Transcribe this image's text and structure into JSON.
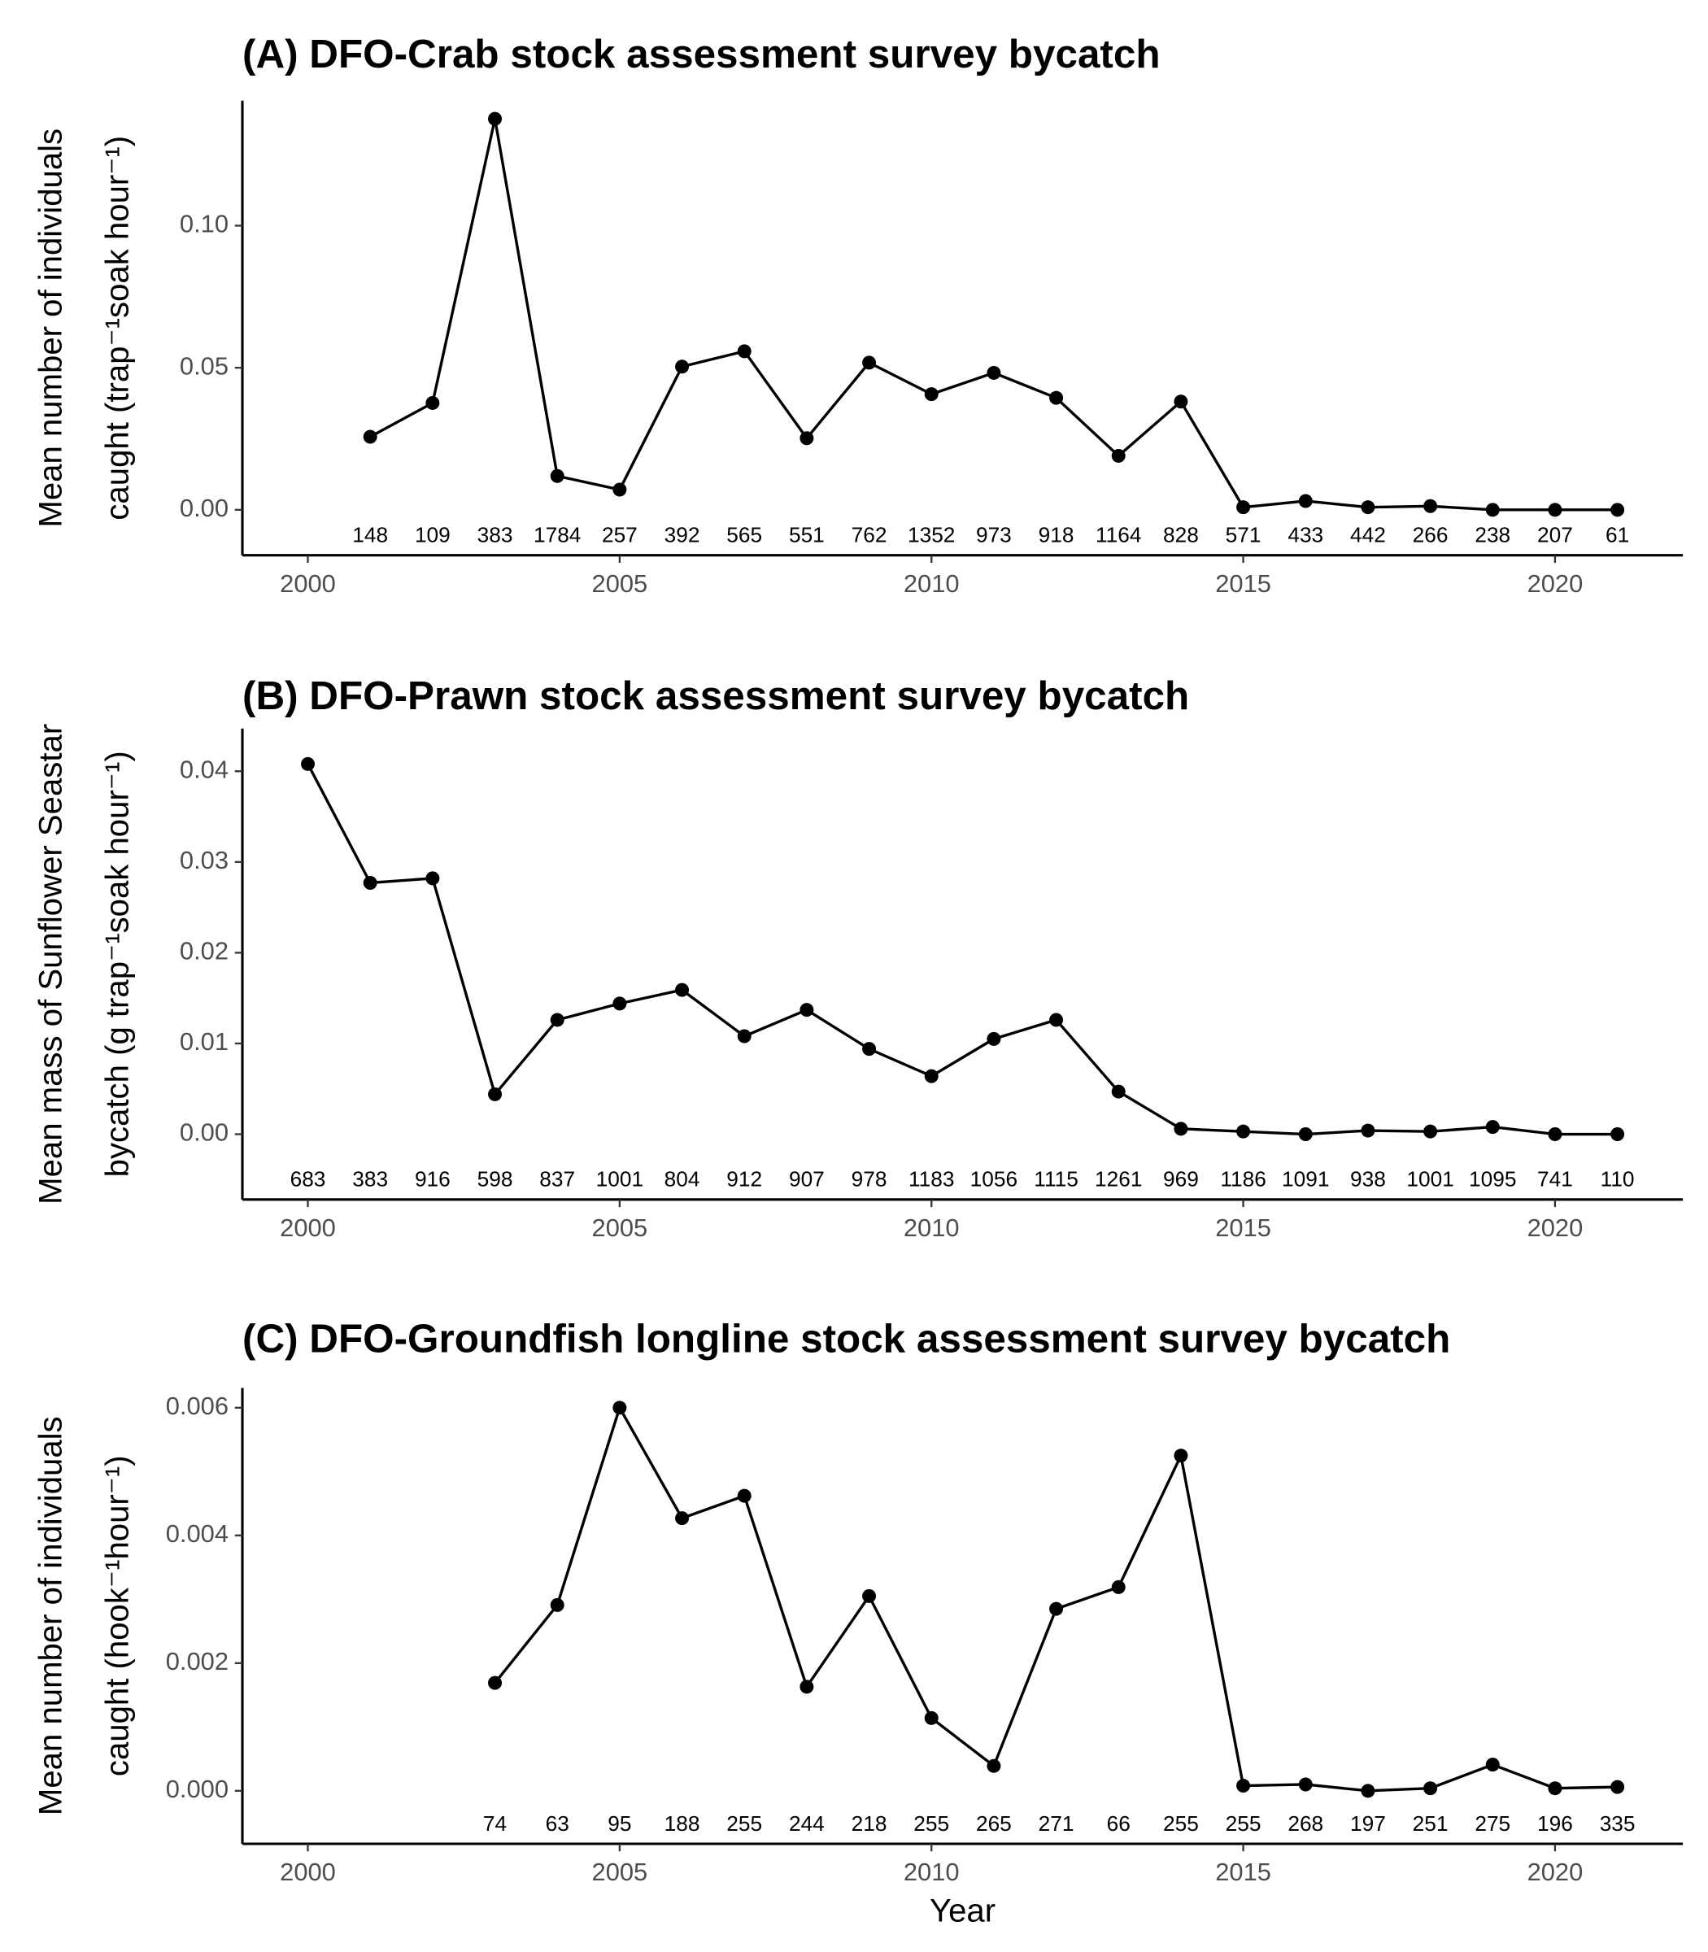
{
  "chart_data": [
    {
      "type": "line",
      "title": "(A) DFO-Crab stock assessment survey bycatch",
      "ylabel_lines": [
        "Mean number of individuals",
        "caught (trap⁻¹soak hour⁻¹)"
      ],
      "x": [
        2001,
        2002,
        2003,
        2004,
        2005,
        2006,
        2007,
        2008,
        2009,
        2010,
        2011,
        2012,
        2013,
        2014,
        2015,
        2016,
        2017,
        2018,
        2019,
        2020,
        2021
      ],
      "values": [
        0.0257,
        0.0376,
        0.1376,
        0.0119,
        0.0071,
        0.0504,
        0.0558,
        0.0252,
        0.0518,
        0.0407,
        0.0482,
        0.0394,
        0.019,
        0.0381,
        0.0009,
        0.0031,
        0.0009,
        0.0013,
        0,
        0,
        0
      ],
      "n_labels": [
        148,
        109,
        383,
        1784,
        257,
        392,
        565,
        551,
        762,
        1352,
        973,
        918,
        1164,
        828,
        571,
        433,
        442,
        266,
        238,
        207,
        61
      ],
      "color": "#000000",
      "xlim": [
        1998.95,
        2022.05
      ],
      "ylim": [
        -0.016,
        0.144
      ],
      "xticks": [
        2000,
        2005,
        2010,
        2015,
        2020
      ],
      "yticks": [
        {
          "value": 0,
          "label": "0.00"
        },
        0.05,
        {
          "value": 0.1,
          "label": "0.10"
        }
      ]
    },
    {
      "type": "line",
      "title": "(B) DFO-Prawn stock assessment survey bycatch",
      "ylabel_lines": [
        "Mean mass of Sunflower Seastar",
        "bycatch (g trap⁻¹soak hour⁻¹)"
      ],
      "x": [
        2000,
        2001,
        2002,
        2003,
        2004,
        2005,
        2006,
        2007,
        2008,
        2009,
        2010,
        2011,
        2012,
        2013,
        2014,
        2015,
        2016,
        2017,
        2018,
        2019,
        2020,
        2021
      ],
      "values": [
        0.0408,
        0.0277,
        0.0282,
        0.0044,
        0.0126,
        0.0144,
        0.0159,
        0.0108,
        0.0137,
        0.0094,
        0.0064,
        0.0105,
        0.0126,
        0.0047,
        0.0006,
        0.0003,
        0,
        0.0004,
        0.0003,
        0.0008,
        0,
        0
      ],
      "n_labels": [
        683,
        383,
        916,
        598,
        837,
        1001,
        804,
        912,
        907,
        978,
        1183,
        1056,
        1115,
        1261,
        969,
        1186,
        1091,
        938,
        1001,
        1095,
        741,
        110
      ],
      "color": "#000000",
      "xlim": [
        1998.95,
        2022.05
      ],
      "ylim": [
        -0.0072,
        0.0447
      ],
      "xticks": [
        2000,
        2005,
        2010,
        2015,
        2020
      ],
      "yticks": [
        {
          "value": 0,
          "label": "0.00"
        },
        0.01,
        0.02,
        0.03,
        0.04
      ]
    },
    {
      "type": "line",
      "title": "(C) DFO-Groundfish longline stock assessment survey bycatch",
      "ylabel_lines": [
        "Mean number of individuals",
        "caught (hook⁻¹hour⁻¹)"
      ],
      "xlabel": "Year",
      "x": [
        2003,
        2004,
        2005,
        2006,
        2007,
        2008,
        2009,
        2010,
        2011,
        2012,
        2013,
        2014,
        2015,
        2016,
        2017,
        2018,
        2019,
        2020,
        2021
      ],
      "values": [
        0.00169,
        0.00291,
        0.006,
        0.00427,
        0.00462,
        0.00163,
        0.00305,
        0.00114,
        0.00039,
        0.00285,
        0.00319,
        0.00525,
        8e-05,
        0.0001,
        0,
        4e-05,
        0.00041,
        4e-05,
        6e-05
      ],
      "n_labels": [
        74,
        63,
        95,
        188,
        255,
        244,
        218,
        255,
        265,
        271,
        66,
        255,
        255,
        268,
        197,
        251,
        275,
        196,
        335
      ],
      "color": "#000000",
      "xlim": [
        1998.95,
        2022.05
      ],
      "ylim": [
        -0.00083,
        0.00631
      ],
      "xticks": [
        2000,
        2005,
        2010,
        2015,
        2020
      ],
      "yticks": [
        {
          "value": 0,
          "label": "0.000"
        },
        {
          "value": 0.002,
          "label": "0.002"
        },
        {
          "value": 0.004,
          "label": "0.004"
        },
        {
          "value": 0.006,
          "label": "0.006"
        }
      ]
    }
  ]
}
